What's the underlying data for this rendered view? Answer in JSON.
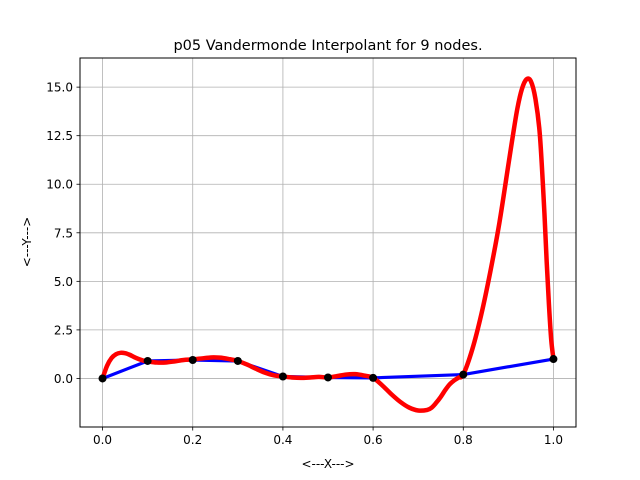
{
  "chart_data": {
    "type": "line",
    "title": "p05 Vandermonde Interpolant for 9 nodes.",
    "xlabel": "<---X--->",
    "ylabel": "<---Y--->",
    "xlim": [
      -0.05,
      1.05
    ],
    "ylim": [
      -2.5,
      16.5
    ],
    "xticks": [
      0.0,
      0.2,
      0.4,
      0.6,
      0.8,
      1.0
    ],
    "xtick_labels": [
      "0.0",
      "0.2",
      "0.4",
      "0.6",
      "0.8",
      "1.0"
    ],
    "yticks": [
      0.0,
      2.5,
      5.0,
      7.5,
      10.0,
      12.5,
      15.0
    ],
    "ytick_labels": [
      "0.0",
      "2.5",
      "5.0",
      "7.5",
      "10.0",
      "12.5",
      "15.0"
    ],
    "grid": true,
    "series": [
      {
        "role": "data-polyline",
        "color": "#0000ff",
        "x": [
          0.0,
          0.1,
          0.2,
          0.3,
          0.4,
          0.5,
          0.6,
          0.8,
          1.0
        ],
        "y": [
          0.0,
          0.9,
          0.95,
          0.9,
          0.1,
          0.05,
          0.03,
          0.2,
          1.0
        ]
      },
      {
        "role": "interpolant",
        "color": "#ff0000",
        "x": [
          0.0,
          0.01,
          0.02,
          0.03,
          0.04,
          0.05,
          0.06,
          0.07,
          0.08,
          0.09,
          0.1,
          0.12,
          0.14,
          0.16,
          0.18,
          0.2,
          0.22,
          0.24,
          0.26,
          0.28,
          0.3,
          0.32,
          0.34,
          0.36,
          0.38,
          0.4,
          0.42,
          0.44,
          0.46,
          0.48,
          0.5,
          0.52,
          0.54,
          0.56,
          0.58,
          0.6,
          0.62,
          0.64,
          0.66,
          0.68,
          0.7,
          0.72,
          0.73,
          0.74,
          0.75,
          0.76,
          0.77,
          0.78,
          0.79,
          0.8,
          0.82,
          0.84,
          0.86,
          0.88,
          0.9,
          0.91,
          0.92,
          0.93,
          0.94,
          0.95,
          0.96,
          0.97,
          0.98,
          0.985,
          0.99,
          0.995,
          1.0
        ],
        "y": [
          0.0,
          0.65,
          1.05,
          1.25,
          1.32,
          1.3,
          1.22,
          1.1,
          1.0,
          0.92,
          0.88,
          0.82,
          0.82,
          0.88,
          0.95,
          0.98,
          1.03,
          1.08,
          1.07,
          1.0,
          0.9,
          0.72,
          0.5,
          0.3,
          0.16,
          0.1,
          0.05,
          0.03,
          0.05,
          0.08,
          0.05,
          0.12,
          0.2,
          0.22,
          0.15,
          0.03,
          -0.35,
          -0.8,
          -1.2,
          -1.5,
          -1.65,
          -1.62,
          -1.5,
          -1.25,
          -0.95,
          -0.6,
          -0.3,
          -0.1,
          0.05,
          0.2,
          1.5,
          3.3,
          5.5,
          8.0,
          11.0,
          12.5,
          13.9,
          14.9,
          15.4,
          15.3,
          14.4,
          12.5,
          8.5,
          6.0,
          3.8,
          2.0,
          1.0
        ]
      }
    ],
    "nodes": {
      "color": "#000000",
      "x": [
        0.0,
        0.1,
        0.2,
        0.3,
        0.4,
        0.5,
        0.6,
        0.8,
        1.0
      ],
      "y": [
        0.0,
        0.9,
        0.95,
        0.9,
        0.1,
        0.05,
        0.03,
        0.2,
        1.0
      ]
    }
  }
}
